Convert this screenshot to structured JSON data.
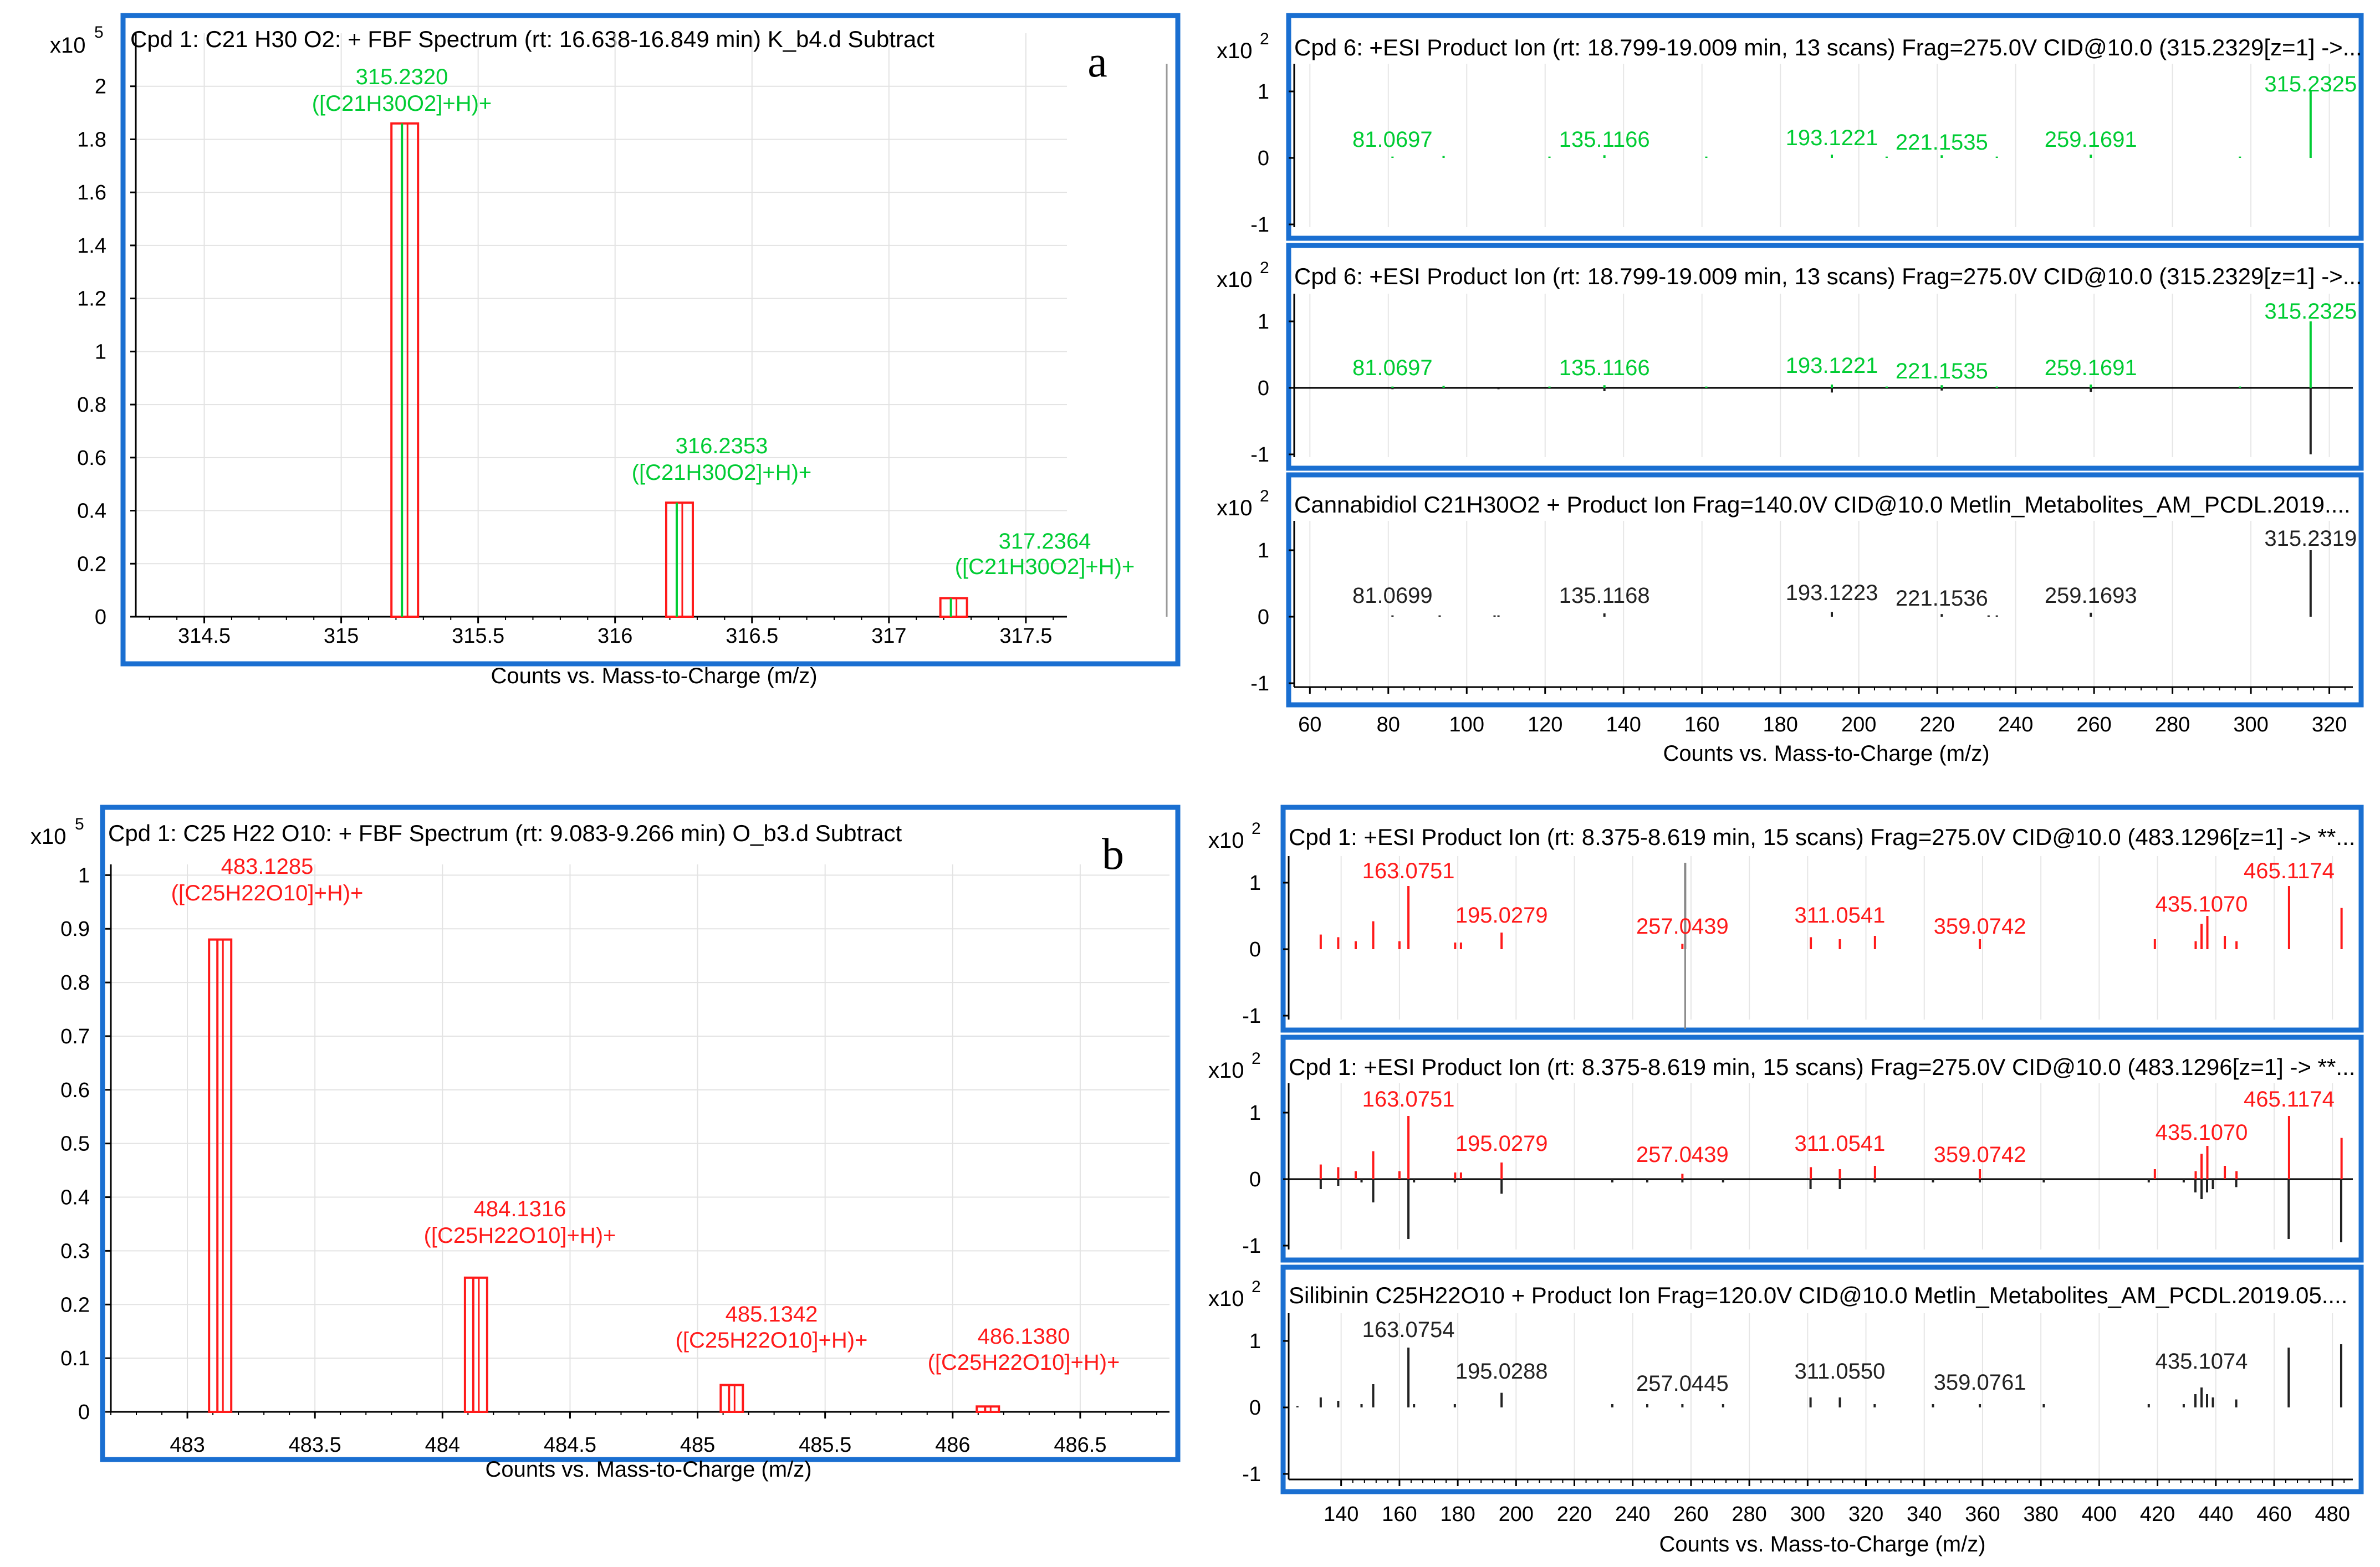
{
  "figure": {
    "xlabel": "Counts vs. Mass-to-Charge (m/z)"
  },
  "chart_data": [
    {
      "id": "a_ms1",
      "type": "bar",
      "panel_letter": "a",
      "title": "Cpd 1: C21 H30 O2: + FBF Spectrum (rt: 16.638-16.849 min) K_b4.d  Subtract",
      "xlabel": "Counts vs. Mass-to-Charge (m/z)",
      "ylabel": "",
      "y_exponent": "5",
      "xlim": [
        314.25,
        317.65
      ],
      "ylim": [
        0,
        2.2
      ],
      "xticks": [
        314.5,
        315,
        315.5,
        316,
        316.5,
        317,
        317.5
      ],
      "xtick_labels": [
        "314.5",
        "315",
        "315.5",
        "316",
        "316.5",
        "317",
        "317.5"
      ],
      "yticks": [
        0,
        0.2,
        0.4,
        0.6,
        0.8,
        1,
        1.2,
        1.4,
        1.6,
        1.8,
        2
      ],
      "ytick_labels": [
        "0",
        "0.2",
        "0.4",
        "0.6",
        "0.8",
        "1",
        "1.2",
        "1.4",
        "1.6",
        "1.8",
        "2"
      ],
      "color": "#00cc33",
      "box_color": "#ff1a1a",
      "series": [
        {
          "name": "observed",
          "x": [
            315.232,
            316.2353,
            317.2364
          ],
          "values": [
            1.86,
            0.43,
            0.07
          ]
        },
        {
          "name": "predicted_isotope",
          "x": [
            315.232,
            316.2353,
            317.2364
          ],
          "values": [
            1.86,
            0.43,
            0.07
          ]
        }
      ],
      "labels": [
        {
          "mz": "315.2320",
          "ion": "([C21H30O2]+H)+"
        },
        {
          "mz": "316.2353",
          "ion": "([C21H30O2]+H)+"
        },
        {
          "mz": "317.2364",
          "ion": "([C21H30O2]+H)+"
        }
      ]
    },
    {
      "id": "a_ms2_sample",
      "type": "bar",
      "title": "Cpd 6: +ESI Product Ion (rt: 18.799-19.009 min, 13 scans) Frag=275.0V CID@10.0 (315.2329[z=1] ->...",
      "xlim": [
        56,
        326
      ],
      "ylim": [
        -1.25,
        1.35
      ],
      "y_exponent": "2",
      "yticks": [
        1,
        0,
        -1
      ],
      "ytick_labels": [
        "1",
        "0",
        "-1"
      ],
      "color": "#00cc33",
      "series": [
        {
          "name": "sample",
          "x": [
            81.0697,
            94.1,
            121.1,
            135.1166,
            161.1,
            193.1221,
            207.1,
            221.1535,
            235.2,
            259.1691,
            297.2,
            315.2325
          ],
          "values": [
            0.02,
            0.03,
            0.02,
            0.04,
            0.02,
            0.05,
            0.02,
            0.04,
            0.02,
            0.05,
            0.02,
            1.0
          ]
        }
      ],
      "labels": [
        "81.0697",
        "135.1166",
        "193.1221",
        "221.1535",
        "259.1691",
        "315.2325"
      ]
    },
    {
      "id": "a_ms2_mirror",
      "type": "bar",
      "title": "Cpd 6: +ESI Product Ion (rt: 18.799-19.009 min, 13 scans) Frag=275.0V CID@10.0 (315.2329[z=1] ->...",
      "xlim": [
        56,
        326
      ],
      "ylim": [
        -1.25,
        1.35
      ],
      "y_exponent": "2",
      "yticks": [
        1,
        0,
        -1
      ],
      "ytick_labels": [
        "1",
        "0",
        "-1"
      ],
      "color": "#00cc33",
      "mirror_color": "#222222",
      "series": [
        {
          "name": "sample",
          "x": [
            81.0697,
            94.1,
            121.1,
            135.1166,
            161.1,
            193.1221,
            207.1,
            221.1535,
            235.2,
            259.1691,
            297.2,
            315.2325
          ],
          "values": [
            0.02,
            0.03,
            0.02,
            0.04,
            0.02,
            0.05,
            0.02,
            0.04,
            0.02,
            0.05,
            0.02,
            1.0
          ]
        },
        {
          "name": "library_mirror",
          "x": [
            81.0699,
            108.1,
            135.1168,
            193.1223,
            221.1536,
            259.1693,
            315.2319
          ],
          "values": [
            -0.02,
            -0.02,
            -0.05,
            -0.07,
            -0.04,
            -0.06,
            -1.0
          ]
        }
      ],
      "labels": [
        "81.0697",
        "135.1166",
        "193.1221",
        "221.1535",
        "259.1691",
        "315.2325"
      ]
    },
    {
      "id": "a_ms2_library",
      "type": "bar",
      "title": "Cannabidiol C21H30O2 + Product Ion Frag=140.0V CID@10.0 Metlin_Metabolites_AM_PCDL.2019....",
      "xlabel": "Counts vs. Mass-to-Charge (m/z)",
      "xlim": [
        56,
        326
      ],
      "ylim": [
        -1.25,
        1.35
      ],
      "y_exponent": "2",
      "yticks": [
        1,
        0,
        -1
      ],
      "ytick_labels": [
        "1",
        "0",
        "-1"
      ],
      "xticks": [
        60,
        80,
        100,
        120,
        140,
        160,
        180,
        200,
        220,
        240,
        260,
        280,
        300,
        320
      ],
      "xtick_labels": [
        "60",
        "80",
        "100",
        "120",
        "140",
        "160",
        "180",
        "200",
        "220",
        "240",
        "260",
        "280",
        "300",
        "320"
      ],
      "color": "#222222",
      "series": [
        {
          "name": "library",
          "x": [
            81.0699,
            93.1,
            107.1,
            108.1,
            135.1168,
            193.1223,
            221.1536,
            233.1,
            235.2,
            259.1693,
            315.2319
          ],
          "values": [
            0.02,
            0.02,
            0.02,
            0.02,
            0.05,
            0.07,
            0.04,
            0.02,
            0.02,
            0.06,
            1.0
          ]
        }
      ],
      "labels": [
        "81.0699",
        "135.1168",
        "193.1223",
        "221.1536",
        "259.1693",
        "315.2319"
      ]
    },
    {
      "id": "b_ms1",
      "type": "bar",
      "panel_letter": "b",
      "title": "Cpd 1: C25 H22 O10: + FBF Spectrum (rt: 9.083-9.266 min) O_b3.d  Subtract",
      "xlabel": "Counts vs. Mass-to-Charge (m/z)",
      "ylabel": "",
      "y_exponent": "5",
      "xlim": [
        482.7,
        486.85
      ],
      "ylim": [
        0,
        1.02
      ],
      "xticks": [
        483,
        483.5,
        484,
        484.5,
        485,
        485.5,
        486,
        486.5
      ],
      "xtick_labels": [
        "483",
        "483.5",
        "484",
        "484.5",
        "485",
        "485.5",
        "486",
        "486.5"
      ],
      "yticks": [
        0,
        0.1,
        0.2,
        0.3,
        0.4,
        0.5,
        0.6,
        0.7,
        0.8,
        0.9,
        1
      ],
      "ytick_labels": [
        "0",
        "0.1",
        "0.2",
        "0.3",
        "0.4",
        "0.5",
        "0.6",
        "0.7",
        "0.8",
        "0.9",
        "1"
      ],
      "color": "#ff1a1a",
      "box_color": "#ff1a1a",
      "series": [
        {
          "name": "observed",
          "x": [
            483.1285,
            484.1316,
            485.1342,
            486.138
          ],
          "values": [
            0.88,
            0.25,
            0.05,
            0.01
          ]
        }
      ],
      "labels": [
        {
          "mz": "483.1285",
          "ion": "([C25H22O10]+H)+"
        },
        {
          "mz": "484.1316",
          "ion": "([C25H22O10]+H)+"
        },
        {
          "mz": "485.1342",
          "ion": "([C25H22O10]+H)+"
        },
        {
          "mz": "486.1380",
          "ion": "([C25H22O10]+H)+"
        }
      ]
    },
    {
      "id": "b_ms2_sample",
      "type": "bar",
      "title": "Cpd 1: +ESI Product Ion (rt: 8.375-8.619 min, 15 scans) Frag=275.0V CID@10.0 (483.1296[z=1] -> **...",
      "xlim": [
        122,
        487
      ],
      "ylim": [
        -1.2,
        1.4
      ],
      "y_exponent": "2",
      "yticks": [
        1,
        0,
        -1
      ],
      "ytick_labels": [
        "1",
        "0",
        "-1"
      ],
      "color": "#ff1a1a",
      "series": [
        {
          "name": "sample",
          "x": [
            133,
            139,
            145,
            151,
            160,
            163.0751,
            179.1,
            181.1,
            195.0279,
            257.0439,
            301.1,
            311.0541,
            323.1,
            359.0742,
            419.1,
            433.1,
            435.107,
            437.1,
            443.1,
            447.1,
            465.1174,
            483.13
          ],
          "values": [
            0.22,
            0.18,
            0.12,
            0.42,
            0.12,
            0.95,
            0.1,
            0.1,
            0.25,
            0.08,
            0.18,
            0.15,
            0.2,
            0.15,
            0.15,
            0.12,
            0.38,
            0.5,
            0.2,
            0.12,
            0.95,
            0.62
          ]
        },
        {
          "name": "gray_marker",
          "x": [
            258
          ],
          "values": [
            1.3
          ],
          "neg": [
            -1.2
          ]
        }
      ],
      "labels": [
        "163.0751",
        "195.0279",
        "257.0439",
        "311.0541",
        "359.0742",
        "435.1070",
        "465.1174"
      ]
    },
    {
      "id": "b_ms2_mirror",
      "type": "bar",
      "title": "Cpd 1: +ESI Product Ion (rt: 8.375-8.619 min, 15 scans) Frag=275.0V CID@10.0 (483.1296[z=1] -> **...",
      "xlim": [
        122,
        487
      ],
      "ylim": [
        -1.2,
        1.4
      ],
      "y_exponent": "2",
      "yticks": [
        1,
        0,
        -1
      ],
      "ytick_labels": [
        "1",
        "0",
        "-1"
      ],
      "color": "#ff1a1a",
      "mirror_color": "#222222",
      "series": [
        {
          "name": "sample",
          "x": [
            133,
            139,
            145,
            151,
            160,
            163.0751,
            179.1,
            181.1,
            195.0279,
            257.0439,
            301.1,
            311.0541,
            323.1,
            359.0742,
            419.1,
            433.1,
            435.107,
            437.1,
            443.1,
            447.1,
            465.1174,
            483.13
          ],
          "values": [
            0.22,
            0.18,
            0.12,
            0.42,
            0.12,
            0.95,
            0.1,
            0.1,
            0.25,
            0.08,
            0.18,
            0.15,
            0.2,
            0.15,
            0.15,
            0.12,
            0.38,
            0.5,
            0.2,
            0.12,
            0.95,
            0.62
          ]
        },
        {
          "name": "library_mirror",
          "x": [
            133,
            139,
            147,
            151,
            163.0754,
            165,
            179,
            195.0288,
            233,
            245,
            257.0445,
            271,
            301,
            311.055,
            323,
            343,
            359.0761,
            381,
            417,
            429,
            433,
            435.1074,
            437,
            439,
            447,
            465,
            483
          ],
          "values": [
            -0.15,
            -0.1,
            -0.05,
            -0.35,
            -0.9,
            -0.05,
            -0.05,
            -0.22,
            -0.05,
            -0.05,
            -0.05,
            -0.05,
            -0.15,
            -0.15,
            -0.05,
            -0.05,
            -0.05,
            -0.05,
            -0.05,
            -0.05,
            -0.2,
            -0.3,
            -0.2,
            -0.15,
            -0.12,
            -0.9,
            -0.95
          ]
        }
      ],
      "labels": [
        "163.0751",
        "195.0279",
        "257.0439",
        "311.0541",
        "359.0742",
        "435.1070",
        "465.1174"
      ]
    },
    {
      "id": "b_ms2_library",
      "type": "bar",
      "title": "Silibinin C25H22O10 + Product Ion Frag=120.0V CID@10.0 Metlin_Metabolites_AM_PCDL.2019.05....",
      "xlabel": "Counts vs. Mass-to-Charge (m/z)",
      "xlim": [
        122,
        487
      ],
      "ylim": [
        -1.2,
        1.4
      ],
      "y_exponent": "2",
      "yticks": [
        1,
        0,
        -1
      ],
      "ytick_labels": [
        "1",
        "0",
        "-1"
      ],
      "xticks": [
        140,
        160,
        180,
        200,
        220,
        240,
        260,
        280,
        300,
        320,
        340,
        360,
        380,
        400,
        420,
        440,
        460,
        480
      ],
      "xtick_labels": [
        "140",
        "160",
        "180",
        "200",
        "220",
        "240",
        "260",
        "280",
        "300",
        "320",
        "340",
        "360",
        "380",
        "400",
        "420",
        "440",
        "460",
        "480"
      ],
      "color": "#222222",
      "series": [
        {
          "name": "library",
          "x": [
            125,
            133,
            139,
            147,
            151,
            163.0754,
            165,
            179,
            195.0288,
            233,
            245,
            257.0445,
            271,
            301,
            311.055,
            323,
            343,
            359.0761,
            381,
            417,
            429,
            433,
            435.1074,
            437,
            439,
            447,
            465,
            483
          ],
          "values": [
            0.02,
            0.15,
            0.1,
            0.05,
            0.35,
            0.9,
            0.05,
            0.05,
            0.22,
            0.05,
            0.05,
            0.05,
            0.05,
            0.15,
            0.15,
            0.05,
            0.05,
            0.05,
            0.05,
            0.05,
            0.05,
            0.2,
            0.3,
            0.2,
            0.15,
            0.12,
            0.9,
            0.95
          ]
        }
      ],
      "labels": [
        "163.0754",
        "195.0288",
        "257.0445",
        "311.0550",
        "359.0761",
        "435.1074"
      ]
    }
  ]
}
